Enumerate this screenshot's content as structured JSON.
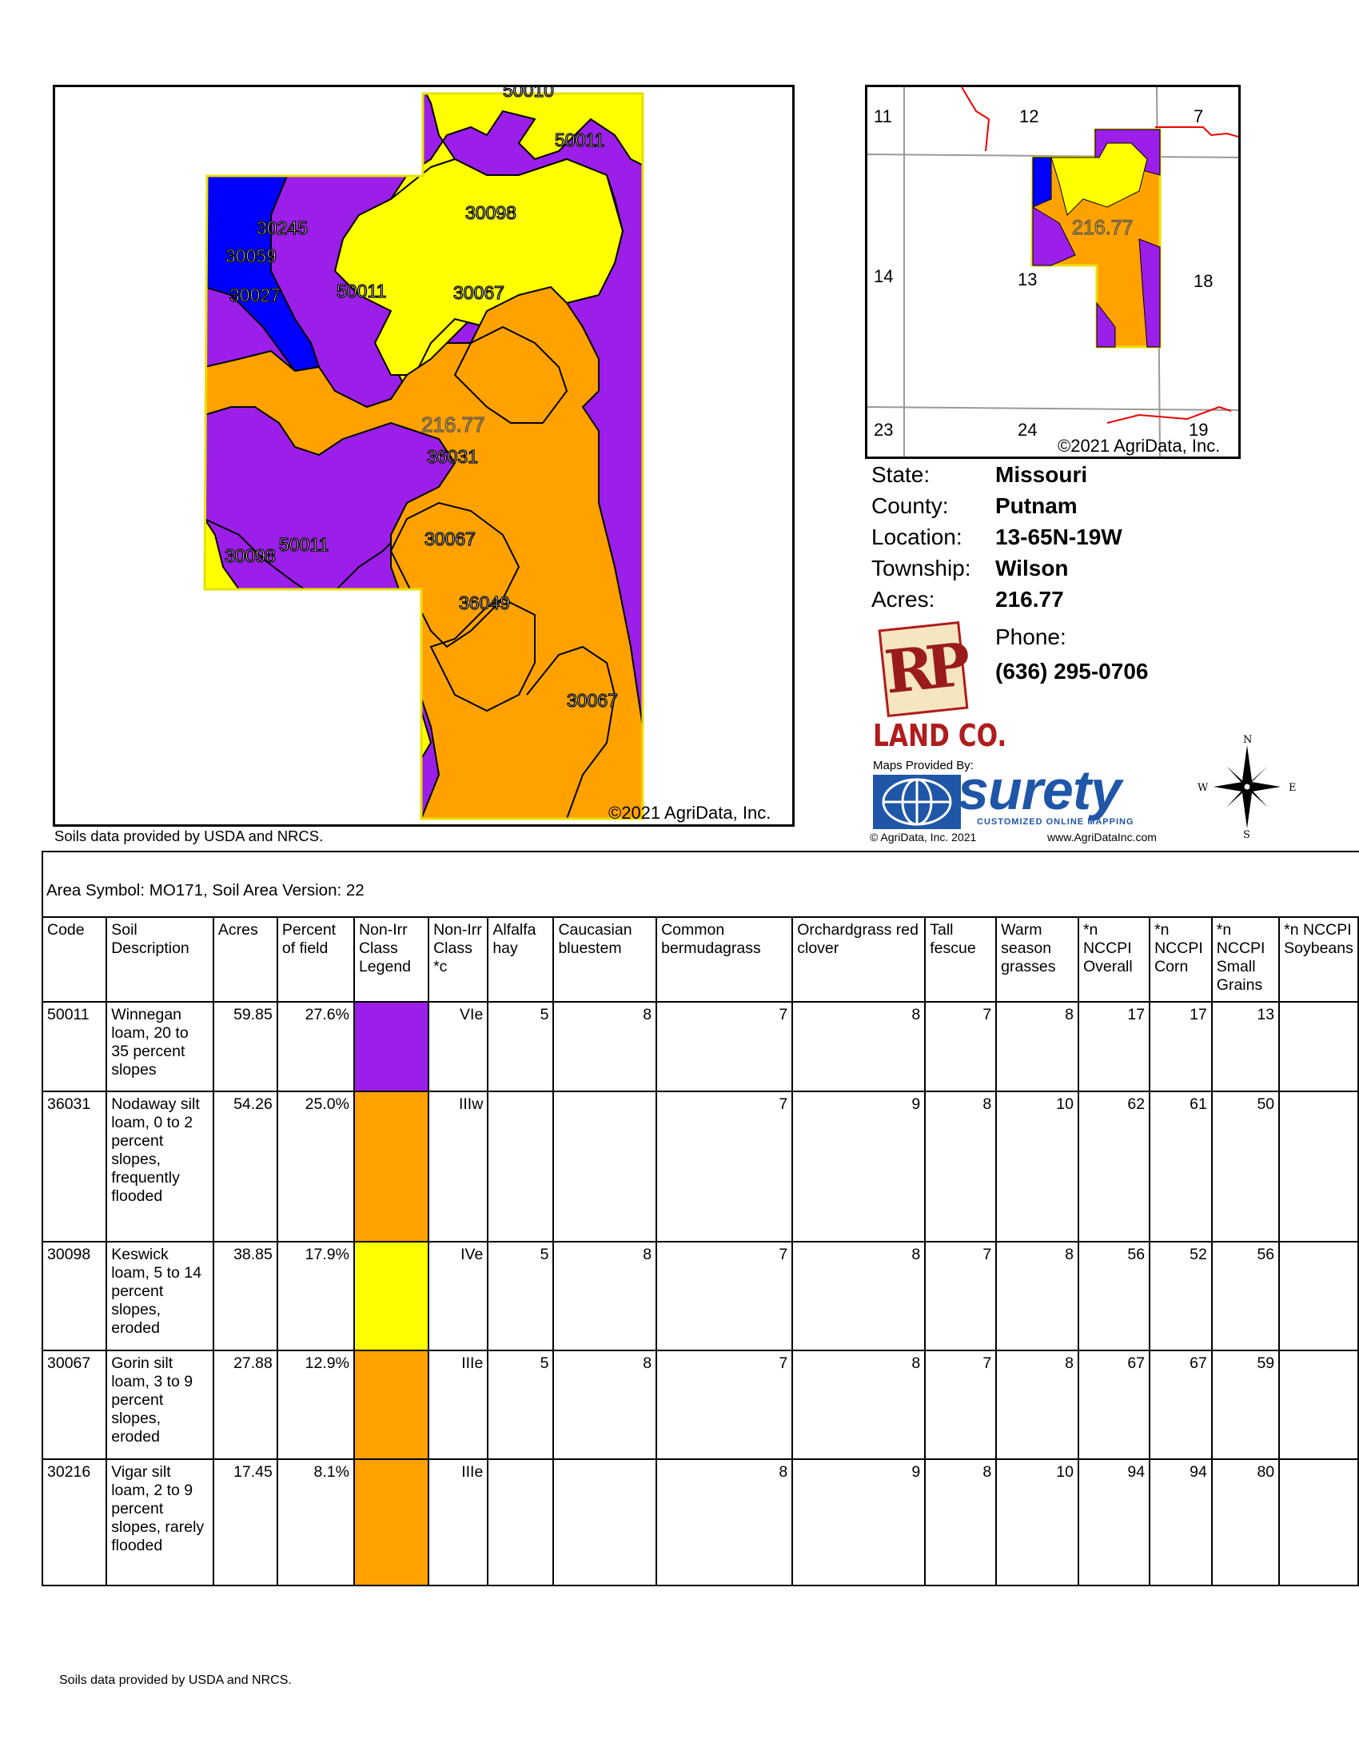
{
  "main_map": {
    "labels": [
      "50010",
      "50011",
      "30098",
      "30245",
      "30059",
      "30027",
      "50011",
      "30067",
      "216.77",
      "36031",
      "50011",
      "30098",
      "30067",
      "36049",
      "30067"
    ],
    "copyright": "©2021 AgriData, Inc.",
    "colors": {
      "purple": "#9b1fe8",
      "orange": "#ffa200",
      "yellow": "#ffff00",
      "blue": "#0000ff"
    }
  },
  "source_note": "Soils data provided by USDA and NRCS.",
  "locator_map": {
    "sections": [
      "11",
      "12",
      "7",
      "14",
      "13",
      "18",
      "23",
      "24",
      "19"
    ],
    "acreage_label": "216.77",
    "copyright": "©2021 AgriData, Inc."
  },
  "info": {
    "state_label": "State:",
    "state": "Missouri",
    "county_label": "County:",
    "county": "Putnam",
    "location_label": "Location:",
    "location": "13-65N-19W",
    "township_label": "Township:",
    "township": "Wilson",
    "acres_label": "Acres:",
    "acres": "216.77",
    "phone_label": "Phone:",
    "phone": "(636) 295-0706"
  },
  "branding": {
    "rp_logo": "RP",
    "land_co": "LAND CO.",
    "maps_provided_by": "Maps Provided By:",
    "surety": "surety",
    "surety_tagline": "CUSTOMIZED ONLINE MAPPING",
    "agridata_copy": "© AgriData, Inc. 2021",
    "agridata_url": "www.AgriDataInc.com",
    "compass": {
      "n": "N",
      "s": "S",
      "e": "E",
      "w": "W"
    }
  },
  "table": {
    "area_symbol": "Area Symbol: MO171, Soil Area Version: 22",
    "headers": [
      "Code",
      "Soil Description",
      "Acres",
      "Percent of field",
      "Non-Irr Class Legend",
      "Non-Irr Class *c",
      "Alfalfa hay",
      "Caucasian bluestem",
      "Common bermudagrass",
      "Orchardgrass red clover",
      "Tall fescue",
      "Warm season grasses",
      "*n NCCPI Overall",
      "*n NCCPI Corn",
      "*n NCCPI Small Grains",
      "*n NCCPI Soybeans"
    ],
    "rows": [
      {
        "code": "50011",
        "desc": "Winnegan loam, 20 to 35 percent slopes",
        "acres": "59.85",
        "pct": "27.6%",
        "legend_color": "#9b1fe8",
        "class": "VIe",
        "alfalfa": "5",
        "caucasian": "8",
        "bermuda": "7",
        "orchard": "8",
        "fescue": "7",
        "warm": "8",
        "overall": "17",
        "corn": "17",
        "small": "13",
        "soy": ""
      },
      {
        "code": "36031",
        "desc": "Nodaway silt loam, 0 to 2 percent slopes, frequently flooded",
        "acres": "54.26",
        "pct": "25.0%",
        "legend_color": "#ffa200",
        "class": "IIIw",
        "alfalfa": "",
        "caucasian": "",
        "bermuda": "7",
        "orchard": "9",
        "fescue": "8",
        "warm": "10",
        "overall": "62",
        "corn": "61",
        "small": "50",
        "soy": ""
      },
      {
        "code": "30098",
        "desc": "Keswick loam, 5 to 14 percent slopes, eroded",
        "acres": "38.85",
        "pct": "17.9%",
        "legend_color": "#ffff00",
        "class": "IVe",
        "alfalfa": "5",
        "caucasian": "8",
        "bermuda": "7",
        "orchard": "8",
        "fescue": "7",
        "warm": "8",
        "overall": "56",
        "corn": "52",
        "small": "56",
        "soy": ""
      },
      {
        "code": "30067",
        "desc": "Gorin silt loam, 3 to 9 percent slopes, eroded",
        "acres": "27.88",
        "pct": "12.9%",
        "legend_color": "#ffa200",
        "class": "IIIe",
        "alfalfa": "5",
        "caucasian": "8",
        "bermuda": "7",
        "orchard": "8",
        "fescue": "7",
        "warm": "8",
        "overall": "67",
        "corn": "67",
        "small": "59",
        "soy": ""
      },
      {
        "code": "30216",
        "desc": "Vigar silt loam, 2 to 9 percent slopes, rarely flooded",
        "acres": "17.45",
        "pct": "8.1%",
        "legend_color": "#ffa200",
        "class": "IIIe",
        "alfalfa": "",
        "caucasian": "",
        "bermuda": "8",
        "orchard": "9",
        "fescue": "8",
        "warm": "10",
        "overall": "94",
        "corn": "94",
        "small": "80",
        "soy": ""
      }
    ]
  },
  "footer_note": "Soils data provided by USDA and NRCS."
}
